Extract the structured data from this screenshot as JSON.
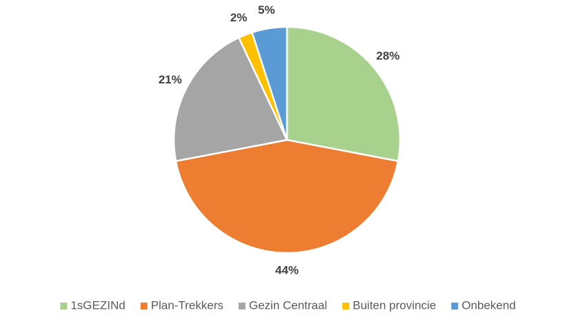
{
  "chart_data": {
    "type": "pie",
    "categories": [
      "1sGEZINd",
      "Plan-Trekkers",
      "Gezin Centraal",
      "Buiten provincie",
      "Onbekend"
    ],
    "values": [
      28,
      44,
      21,
      2,
      5
    ],
    "value_labels": [
      "28%",
      "44%",
      "21%",
      "2%",
      "5%"
    ],
    "colors": [
      "#a9d18e",
      "#ed7d31",
      "#a5a5a5",
      "#ffc000",
      "#5b9bd5"
    ],
    "legend": "bottom"
  }
}
